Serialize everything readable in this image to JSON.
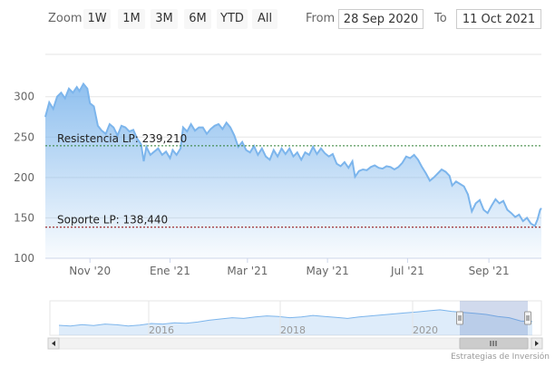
{
  "toolbar": {
    "zoom_label": "Zoom",
    "buttons": [
      "1W",
      "1M",
      "3M",
      "6M",
      "YTD",
      "All"
    ],
    "from_label": "From",
    "from_value": "28 Sep 2020",
    "to_label": "To",
    "to_value": "11 Oct 2021"
  },
  "credits": "Estrategias de Inversión",
  "colors": {
    "series": "#7cb5ec",
    "resistance": "#2e7d32",
    "support": "#8b0000",
    "navigator_mask": "rgba(102,133,194,0.3)"
  },
  "chart_data": {
    "type": "area",
    "title": "",
    "xlabel": "",
    "ylabel": "",
    "x_range": [
      "2020-09-28",
      "2021-10-11"
    ],
    "ylim": [
      100,
      330
    ],
    "yticks": [
      100,
      150,
      200,
      250,
      300
    ],
    "xticks": [
      {
        "date": "2020-11-01",
        "label": "Nov '20"
      },
      {
        "date": "2021-01-01",
        "label": "Ene '21"
      },
      {
        "date": "2021-03-01",
        "label": "Mar '21"
      },
      {
        "date": "2021-05-01",
        "label": "May '21"
      },
      {
        "date": "2021-07-01",
        "label": "Jul '21"
      },
      {
        "date": "2021-09-01",
        "label": "Sep '21"
      }
    ],
    "series": [
      {
        "points": [
          [
            "2020-09-28",
            275
          ],
          [
            "2020-10-01",
            293
          ],
          [
            "2020-10-04",
            285
          ],
          [
            "2020-10-07",
            300
          ],
          [
            "2020-10-10",
            305
          ],
          [
            "2020-10-13",
            298
          ],
          [
            "2020-10-16",
            310
          ],
          [
            "2020-10-19",
            305
          ],
          [
            "2020-10-22",
            312
          ],
          [
            "2020-10-24",
            307
          ],
          [
            "2020-10-27",
            316
          ],
          [
            "2020-10-30",
            310
          ],
          [
            "2020-11-01",
            292
          ],
          [
            "2020-11-04",
            288
          ],
          [
            "2020-11-07",
            264
          ],
          [
            "2020-11-10",
            258
          ],
          [
            "2020-11-13",
            254
          ],
          [
            "2020-11-16",
            266
          ],
          [
            "2020-11-19",
            262
          ],
          [
            "2020-11-22",
            252
          ],
          [
            "2020-11-25",
            264
          ],
          [
            "2020-11-28",
            262
          ],
          [
            "2020-12-01",
            257
          ],
          [
            "2020-12-04",
            259
          ],
          [
            "2020-12-07",
            248
          ],
          [
            "2020-12-10",
            241
          ],
          [
            "2020-12-12",
            220
          ],
          [
            "2020-12-14",
            238
          ],
          [
            "2020-12-17",
            228
          ],
          [
            "2020-12-20",
            232
          ],
          [
            "2020-12-23",
            236
          ],
          [
            "2020-12-26",
            228
          ],
          [
            "2020-12-29",
            232
          ],
          [
            "2021-01-01",
            224
          ],
          [
            "2021-01-03",
            234
          ],
          [
            "2021-01-06",
            228
          ],
          [
            "2021-01-09",
            236
          ],
          [
            "2021-01-11",
            262
          ],
          [
            "2021-01-14",
            257
          ],
          [
            "2021-01-17",
            266
          ],
          [
            "2021-01-20",
            258
          ],
          [
            "2021-01-23",
            262
          ],
          [
            "2021-01-26",
            262
          ],
          [
            "2021-01-29",
            254
          ],
          [
            "2021-02-01",
            260
          ],
          [
            "2021-02-04",
            264
          ],
          [
            "2021-02-07",
            266
          ],
          [
            "2021-02-10",
            260
          ],
          [
            "2021-02-13",
            268
          ],
          [
            "2021-02-16",
            262
          ],
          [
            "2021-02-19",
            252
          ],
          [
            "2021-02-22",
            238
          ],
          [
            "2021-02-25",
            244
          ],
          [
            "2021-02-28",
            234
          ],
          [
            "2021-03-03",
            231
          ],
          [
            "2021-03-06",
            239
          ],
          [
            "2021-03-09",
            228
          ],
          [
            "2021-03-12",
            236
          ],
          [
            "2021-03-15",
            226
          ],
          [
            "2021-03-18",
            222
          ],
          [
            "2021-03-21",
            234
          ],
          [
            "2021-03-24",
            226
          ],
          [
            "2021-03-27",
            236
          ],
          [
            "2021-03-30",
            229
          ],
          [
            "2021-04-02",
            236
          ],
          [
            "2021-04-05",
            226
          ],
          [
            "2021-04-08",
            231
          ],
          [
            "2021-04-11",
            222
          ],
          [
            "2021-04-14",
            231
          ],
          [
            "2021-04-17",
            228
          ],
          [
            "2021-04-20",
            238
          ],
          [
            "2021-04-23",
            229
          ],
          [
            "2021-04-26",
            236
          ],
          [
            "2021-04-29",
            230
          ],
          [
            "2021-05-02",
            226
          ],
          [
            "2021-05-05",
            229
          ],
          [
            "2021-05-08",
            217
          ],
          [
            "2021-05-11",
            214
          ],
          [
            "2021-05-14",
            219
          ],
          [
            "2021-05-17",
            212
          ],
          [
            "2021-05-20",
            220
          ],
          [
            "2021-05-22",
            201
          ],
          [
            "2021-05-25",
            208
          ],
          [
            "2021-05-28",
            210
          ],
          [
            "2021-05-31",
            209
          ],
          [
            "2021-06-03",
            213
          ],
          [
            "2021-06-06",
            215
          ],
          [
            "2021-06-09",
            212
          ],
          [
            "2021-06-12",
            211
          ],
          [
            "2021-06-15",
            214
          ],
          [
            "2021-06-18",
            213
          ],
          [
            "2021-06-21",
            210
          ],
          [
            "2021-06-24",
            213
          ],
          [
            "2021-06-27",
            218
          ],
          [
            "2021-06-30",
            226
          ],
          [
            "2021-07-03",
            224
          ],
          [
            "2021-07-06",
            228
          ],
          [
            "2021-07-09",
            222
          ],
          [
            "2021-07-12",
            213
          ],
          [
            "2021-07-15",
            205
          ],
          [
            "2021-07-18",
            196
          ],
          [
            "2021-07-21",
            200
          ],
          [
            "2021-07-24",
            205
          ],
          [
            "2021-07-27",
            210
          ],
          [
            "2021-07-30",
            207
          ],
          [
            "2021-08-02",
            202
          ],
          [
            "2021-08-04",
            190
          ],
          [
            "2021-08-07",
            195
          ],
          [
            "2021-08-10",
            192
          ],
          [
            "2021-08-13",
            189
          ],
          [
            "2021-08-16",
            179
          ],
          [
            "2021-08-19",
            158
          ],
          [
            "2021-08-22",
            168
          ],
          [
            "2021-08-25",
            172
          ],
          [
            "2021-08-28",
            160
          ],
          [
            "2021-08-31",
            156
          ],
          [
            "2021-09-03",
            165
          ],
          [
            "2021-09-06",
            173
          ],
          [
            "2021-09-09",
            168
          ],
          [
            "2021-09-12",
            171
          ],
          [
            "2021-09-15",
            160
          ],
          [
            "2021-09-18",
            156
          ],
          [
            "2021-09-21",
            151
          ],
          [
            "2021-09-24",
            154
          ],
          [
            "2021-09-27",
            146
          ],
          [
            "2021-09-30",
            150
          ],
          [
            "2021-10-03",
            143
          ],
          [
            "2021-10-06",
            140
          ],
          [
            "2021-10-08",
            148
          ],
          [
            "2021-10-10",
            160
          ],
          [
            "2021-10-11",
            162
          ]
        ]
      }
    ],
    "annotations": [
      {
        "type": "resistance",
        "label": "Resistencia LP: 239,210",
        "value": 239.21
      },
      {
        "type": "support",
        "label": "Soporte LP: 138,440",
        "value": 138.44
      }
    ],
    "navigator": {
      "x_labels": [
        "2016",
        "2018",
        "2020"
      ],
      "selected_range": [
        "2020-09-28",
        "2021-10-11"
      ]
    },
    "grid": true,
    "legend": "none"
  }
}
